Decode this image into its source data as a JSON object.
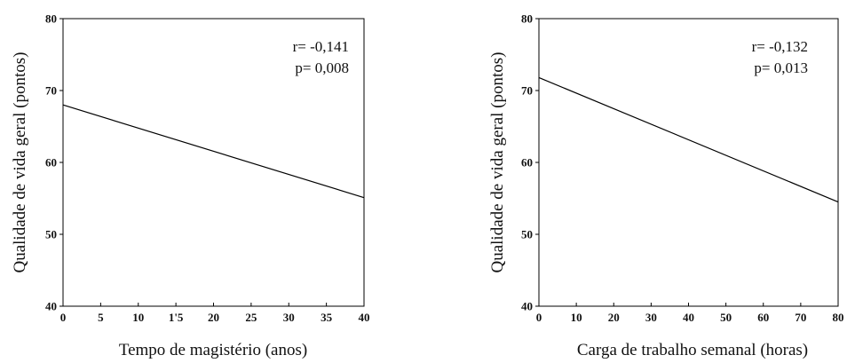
{
  "chart_data": [
    {
      "type": "line",
      "xlabel": "Tempo de magistério (anos)",
      "ylabel": "Qualidade de vida geral (pontos)",
      "xlim": [
        0,
        40
      ],
      "ylim": [
        40,
        80
      ],
      "x_ticks": [
        "0",
        "5",
        "10",
        "1'5",
        "20",
        "25",
        "30",
        "35",
        "40"
      ],
      "y_ticks": [
        "40",
        "50",
        "60",
        "70",
        "80"
      ],
      "series": [
        {
          "x": [
            0,
            40
          ],
          "y": [
            68,
            55.1
          ]
        }
      ],
      "annotations": [
        "r= -0,141",
        "p= 0,008"
      ],
      "grid": false
    },
    {
      "type": "line",
      "xlabel": "Carga de trabalho semanal (horas)",
      "ylabel": "Qualidade de vida geral (pontos)",
      "xlim": [
        0,
        80
      ],
      "ylim": [
        40,
        80
      ],
      "x_ticks": [
        "0",
        "10",
        "20",
        "30",
        "40",
        "50",
        "60",
        "70",
        "80"
      ],
      "y_ticks": [
        "40",
        "50",
        "60",
        "70",
        "80"
      ],
      "series": [
        {
          "x": [
            0,
            80
          ],
          "y": [
            71.8,
            54.5
          ]
        }
      ],
      "annotations": [
        "r= -0,132",
        "p= 0,013"
      ],
      "grid": false
    }
  ],
  "colors": {
    "line": "#000000",
    "text": "#111111"
  }
}
